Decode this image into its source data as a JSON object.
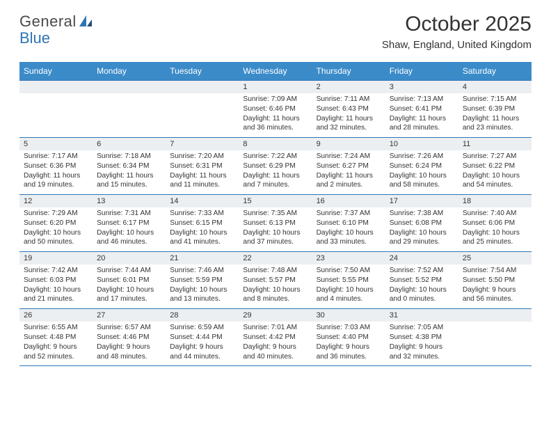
{
  "brand": {
    "name_a": "General",
    "name_b": "Blue"
  },
  "title": "October 2025",
  "location": "Shaw, England, United Kingdom",
  "colors": {
    "header_bg": "#3b8bc9",
    "rule": "#2e75b6",
    "daynum_bg": "#eceff1",
    "text": "#333333",
    "white": "#ffffff"
  },
  "day_headers": [
    "Sunday",
    "Monday",
    "Tuesday",
    "Wednesday",
    "Thursday",
    "Friday",
    "Saturday"
  ],
  "weeks": [
    [
      {
        "n": "",
        "sunrise": "",
        "sunset": "",
        "daylight": ""
      },
      {
        "n": "",
        "sunrise": "",
        "sunset": "",
        "daylight": ""
      },
      {
        "n": "",
        "sunrise": "",
        "sunset": "",
        "daylight": ""
      },
      {
        "n": "1",
        "sunrise": "7:09 AM",
        "sunset": "6:46 PM",
        "daylight": "11 hours and 36 minutes."
      },
      {
        "n": "2",
        "sunrise": "7:11 AM",
        "sunset": "6:43 PM",
        "daylight": "11 hours and 32 minutes."
      },
      {
        "n": "3",
        "sunrise": "7:13 AM",
        "sunset": "6:41 PM",
        "daylight": "11 hours and 28 minutes."
      },
      {
        "n": "4",
        "sunrise": "7:15 AM",
        "sunset": "6:39 PM",
        "daylight": "11 hours and 23 minutes."
      }
    ],
    [
      {
        "n": "5",
        "sunrise": "7:17 AM",
        "sunset": "6:36 PM",
        "daylight": "11 hours and 19 minutes."
      },
      {
        "n": "6",
        "sunrise": "7:18 AM",
        "sunset": "6:34 PM",
        "daylight": "11 hours and 15 minutes."
      },
      {
        "n": "7",
        "sunrise": "7:20 AM",
        "sunset": "6:31 PM",
        "daylight": "11 hours and 11 minutes."
      },
      {
        "n": "8",
        "sunrise": "7:22 AM",
        "sunset": "6:29 PM",
        "daylight": "11 hours and 7 minutes."
      },
      {
        "n": "9",
        "sunrise": "7:24 AM",
        "sunset": "6:27 PM",
        "daylight": "11 hours and 2 minutes."
      },
      {
        "n": "10",
        "sunrise": "7:26 AM",
        "sunset": "6:24 PM",
        "daylight": "10 hours and 58 minutes."
      },
      {
        "n": "11",
        "sunrise": "7:27 AM",
        "sunset": "6:22 PM",
        "daylight": "10 hours and 54 minutes."
      }
    ],
    [
      {
        "n": "12",
        "sunrise": "7:29 AM",
        "sunset": "6:20 PM",
        "daylight": "10 hours and 50 minutes."
      },
      {
        "n": "13",
        "sunrise": "7:31 AM",
        "sunset": "6:17 PM",
        "daylight": "10 hours and 46 minutes."
      },
      {
        "n": "14",
        "sunrise": "7:33 AM",
        "sunset": "6:15 PM",
        "daylight": "10 hours and 41 minutes."
      },
      {
        "n": "15",
        "sunrise": "7:35 AM",
        "sunset": "6:13 PM",
        "daylight": "10 hours and 37 minutes."
      },
      {
        "n": "16",
        "sunrise": "7:37 AM",
        "sunset": "6:10 PM",
        "daylight": "10 hours and 33 minutes."
      },
      {
        "n": "17",
        "sunrise": "7:38 AM",
        "sunset": "6:08 PM",
        "daylight": "10 hours and 29 minutes."
      },
      {
        "n": "18",
        "sunrise": "7:40 AM",
        "sunset": "6:06 PM",
        "daylight": "10 hours and 25 minutes."
      }
    ],
    [
      {
        "n": "19",
        "sunrise": "7:42 AM",
        "sunset": "6:03 PM",
        "daylight": "10 hours and 21 minutes."
      },
      {
        "n": "20",
        "sunrise": "7:44 AM",
        "sunset": "6:01 PM",
        "daylight": "10 hours and 17 minutes."
      },
      {
        "n": "21",
        "sunrise": "7:46 AM",
        "sunset": "5:59 PM",
        "daylight": "10 hours and 13 minutes."
      },
      {
        "n": "22",
        "sunrise": "7:48 AM",
        "sunset": "5:57 PM",
        "daylight": "10 hours and 8 minutes."
      },
      {
        "n": "23",
        "sunrise": "7:50 AM",
        "sunset": "5:55 PM",
        "daylight": "10 hours and 4 minutes."
      },
      {
        "n": "24",
        "sunrise": "7:52 AM",
        "sunset": "5:52 PM",
        "daylight": "10 hours and 0 minutes."
      },
      {
        "n": "25",
        "sunrise": "7:54 AM",
        "sunset": "5:50 PM",
        "daylight": "9 hours and 56 minutes."
      }
    ],
    [
      {
        "n": "26",
        "sunrise": "6:55 AM",
        "sunset": "4:48 PM",
        "daylight": "9 hours and 52 minutes."
      },
      {
        "n": "27",
        "sunrise": "6:57 AM",
        "sunset": "4:46 PM",
        "daylight": "9 hours and 48 minutes."
      },
      {
        "n": "28",
        "sunrise": "6:59 AM",
        "sunset": "4:44 PM",
        "daylight": "9 hours and 44 minutes."
      },
      {
        "n": "29",
        "sunrise": "7:01 AM",
        "sunset": "4:42 PM",
        "daylight": "9 hours and 40 minutes."
      },
      {
        "n": "30",
        "sunrise": "7:03 AM",
        "sunset": "4:40 PM",
        "daylight": "9 hours and 36 minutes."
      },
      {
        "n": "31",
        "sunrise": "7:05 AM",
        "sunset": "4:38 PM",
        "daylight": "9 hours and 32 minutes."
      },
      {
        "n": "",
        "sunrise": "",
        "sunset": "",
        "daylight": ""
      }
    ]
  ],
  "labels": {
    "sunrise": "Sunrise:",
    "sunset": "Sunset:",
    "daylight": "Daylight:"
  }
}
